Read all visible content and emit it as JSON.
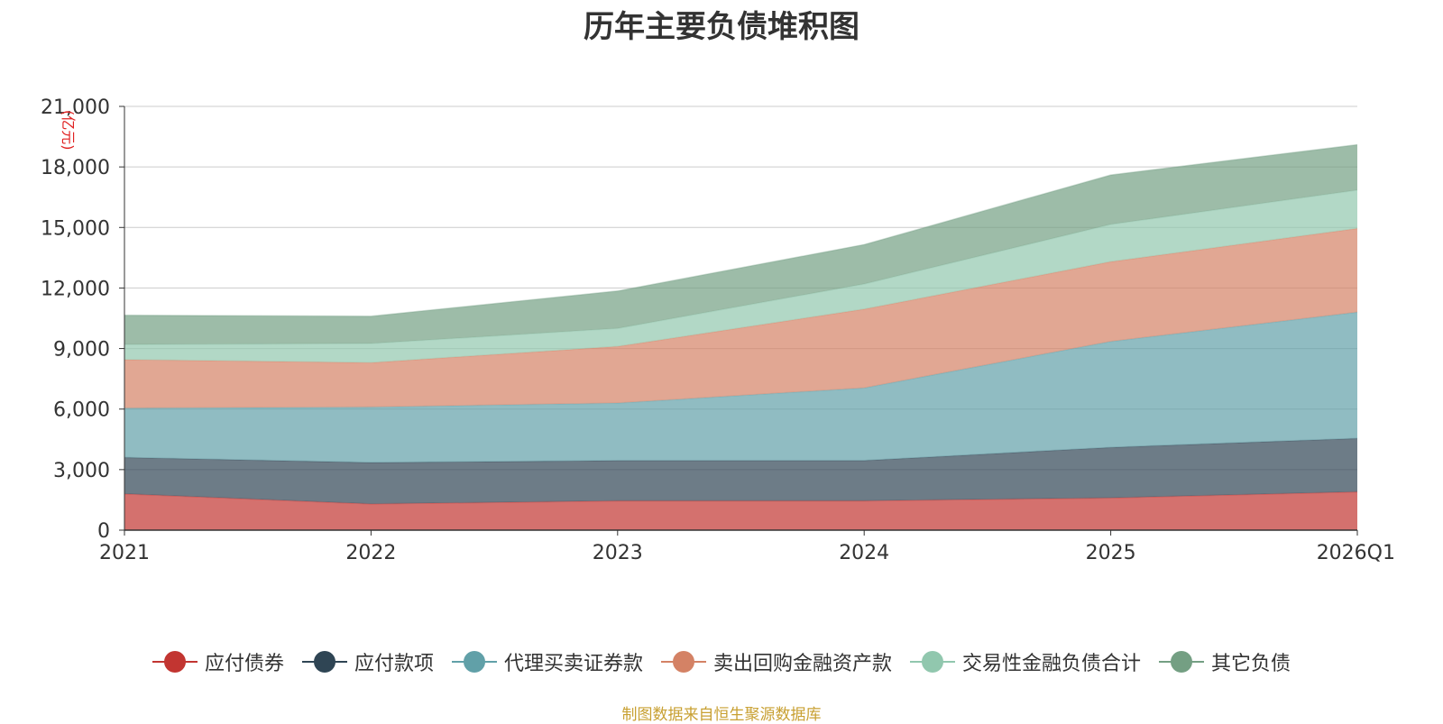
{
  "chart_data": {
    "type": "area",
    "stacked": true,
    "title": "历年主要负债堆积图",
    "ylabel": "(亿元)",
    "xlabel": "",
    "categories": [
      "2021",
      "2022",
      "2023",
      "2024",
      "2025",
      "2026Q1"
    ],
    "ylim": [
      0,
      21000
    ],
    "yticks": [
      0,
      3000,
      6000,
      9000,
      12000,
      15000,
      18000,
      21000
    ],
    "ytick_labels": [
      "0",
      "3,000",
      "6,000",
      "9,000",
      "12,000",
      "15,000",
      "18,000",
      "21,000"
    ],
    "grid": true,
    "legend_position": "bottom",
    "series": [
      {
        "name": "应付债券",
        "values": [
          1800,
          1300,
          1450,
          1450,
          1600,
          1900
        ],
        "color": "#c23531"
      },
      {
        "name": "应付款项",
        "values": [
          1800,
          2050,
          2000,
          2000,
          2500,
          2650
        ],
        "color": "#2f4554"
      },
      {
        "name": "代理买卖证券款",
        "values": [
          2450,
          2750,
          2850,
          3600,
          5250,
          6250
        ],
        "color": "#61a0a8"
      },
      {
        "name": "卖出回购金融资产款",
        "values": [
          2400,
          2200,
          2800,
          3900,
          3950,
          4150
        ],
        "color": "#d48265"
      },
      {
        "name": "交易性金融负债合计",
        "values": [
          750,
          950,
          900,
          1250,
          1850,
          1900
        ],
        "color": "#91c7ae"
      },
      {
        "name": "其它负债",
        "values": [
          1450,
          1350,
          1850,
          1950,
          2450,
          2250
        ],
        "color": "#749f83"
      }
    ]
  },
  "source": "制图数据来自恒生聚源数据库"
}
